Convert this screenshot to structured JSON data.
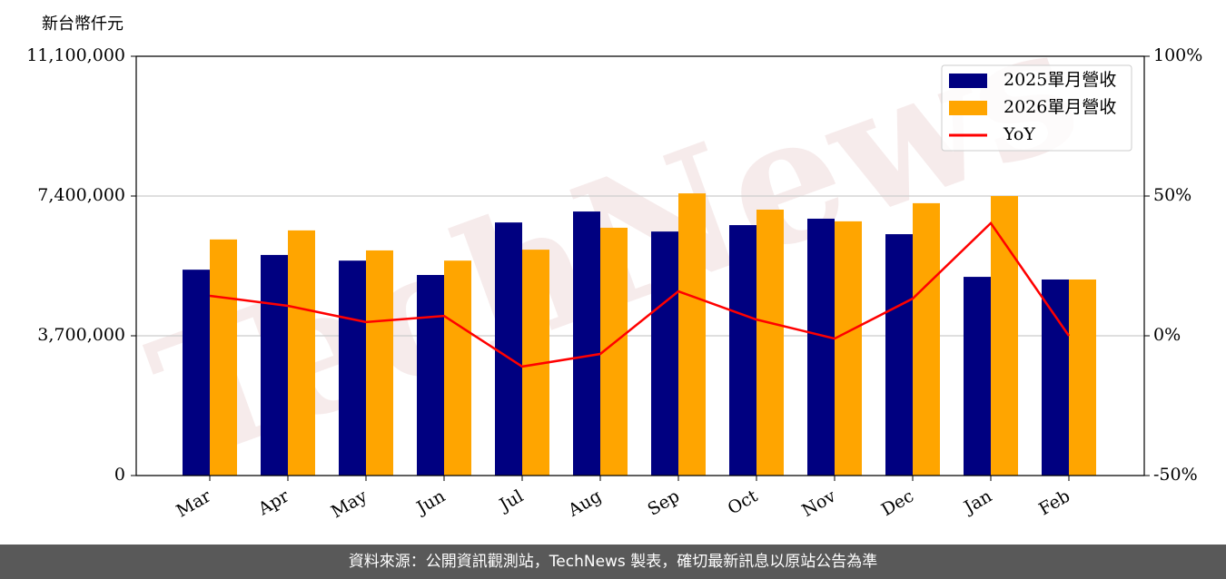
{
  "chart_data": {
    "type": "bar",
    "y_label": "新台幣仟元",
    "watermark": "TechNews",
    "categories": [
      "Mar",
      "Apr",
      "May",
      "Jun",
      "Jul",
      "Aug",
      "Sep",
      "Oct",
      "Nov",
      "Dec",
      "Jan",
      "Feb"
    ],
    "series": [
      {
        "name": "2025單月營收",
        "color": "#000080",
        "values": [
          5450000,
          5840000,
          5690000,
          5310000,
          6700000,
          6990000,
          6460000,
          6630000,
          6800000,
          6390000,
          5260000,
          5190000
        ]
      },
      {
        "name": "2026單月營收",
        "color": "#ffa500",
        "values": [
          6250000,
          6490000,
          5960000,
          5690000,
          5980000,
          6560000,
          7470000,
          7040000,
          6730000,
          7210000,
          7400000,
          5190000
        ]
      },
      {
        "name": "YoY",
        "color": "#ff0000",
        "type": "line",
        "axis": "y2",
        "values": [
          14.3,
          10.7,
          4.9,
          7.1,
          -11,
          -6.5,
          15.9,
          5.8,
          -1,
          13.3,
          40.3,
          0
        ]
      }
    ],
    "ylim": [
      0,
      11100000
    ],
    "yticks": [
      {
        "value": 0,
        "label": "0"
      },
      {
        "value": 3700000,
        "label": "3,700,000"
      },
      {
        "value": 7400000,
        "label": "7,400,000"
      },
      {
        "value": 11100000,
        "label": "11,100,000"
      }
    ],
    "y2lim": [
      -50,
      100
    ],
    "y2ticks": [
      {
        "value": -50,
        "label": "-50%"
      },
      {
        "value": 0,
        "label": "0%"
      },
      {
        "value": 50,
        "label": "50%"
      },
      {
        "value": 100,
        "label": "100%"
      }
    ],
    "grid": true,
    "legend": "upper right"
  },
  "footer": "資料來源：公開資訊觀測站，TechNews 製表，確切最新訊息以原站公告為準"
}
